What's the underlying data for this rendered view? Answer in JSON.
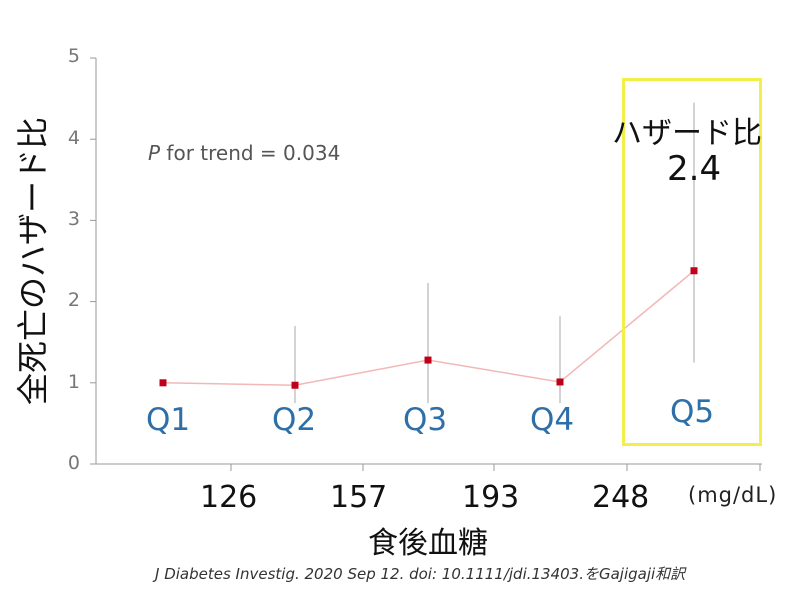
{
  "chart_data": {
    "type": "line",
    "categories": [
      "Q1",
      "Q2",
      "Q3",
      "Q4",
      "Q5"
    ],
    "series": [
      {
        "values": [
          1.0,
          0.97,
          1.28,
          1.01,
          2.38
        ],
        "ci_lower": [
          1.0,
          0.75,
          0.75,
          0.75,
          1.25
        ],
        "ci_upper": [
          1.0,
          1.7,
          2.23,
          1.82,
          4.45
        ]
      }
    ],
    "ylim": [
      0,
      5
    ],
    "yticks": [
      "0",
      "1",
      "2",
      "3",
      "4",
      "5"
    ],
    "ylabel": "全死亡のハザード比",
    "xlabel": "食後血糖",
    "x_boundaries": [
      "126",
      "157",
      "193",
      "248"
    ],
    "x_unit": "(mg/dL)",
    "annotation": {
      "italic": "P",
      "text": " for trend = 0.034"
    },
    "highlight": {
      "title": "ハザード比",
      "value": "2.4"
    },
    "colors": {
      "line": "#f2b8b8",
      "marker": "#c0001a",
      "ci": "#c8c8c8",
      "highlight_box": "#f4ee4a",
      "quartile_label": "#2f6fa8"
    }
  },
  "source": "J Diabetes Investig. 2020 Sep 12. doi: 10.1111/jdi.13403.をGajigaji和訳"
}
